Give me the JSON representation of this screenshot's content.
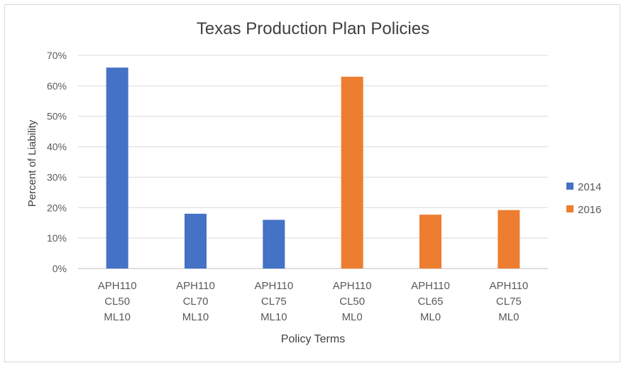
{
  "chart_data": {
    "type": "bar",
    "title": "Texas Production Plan Policies",
    "xlabel": "Policy Terms",
    "ylabel": "Percent of Liability",
    "ylim": [
      0,
      70
    ],
    "yticks": [
      "0%",
      "10%",
      "20%",
      "30%",
      "40%",
      "50%",
      "60%",
      "70%"
    ],
    "grid": true,
    "legend_position": "right",
    "categories": [
      [
        "APH110",
        "CL50",
        "ML10"
      ],
      [
        "APH110",
        "CL70",
        "ML10"
      ],
      [
        "APH110",
        "CL75",
        "ML10"
      ],
      [
        "APH110",
        "CL50",
        "ML0"
      ],
      [
        "APH110",
        "CL65",
        "ML0"
      ],
      [
        "APH110",
        "CL75",
        "ML0"
      ]
    ],
    "series": [
      {
        "name": "2014",
        "color": "#4472C4",
        "values": [
          66,
          18,
          16,
          null,
          null,
          null
        ]
      },
      {
        "name": "2016",
        "color": "#ED7D31",
        "values": [
          null,
          null,
          null,
          63,
          17.7,
          19.2
        ]
      }
    ]
  }
}
